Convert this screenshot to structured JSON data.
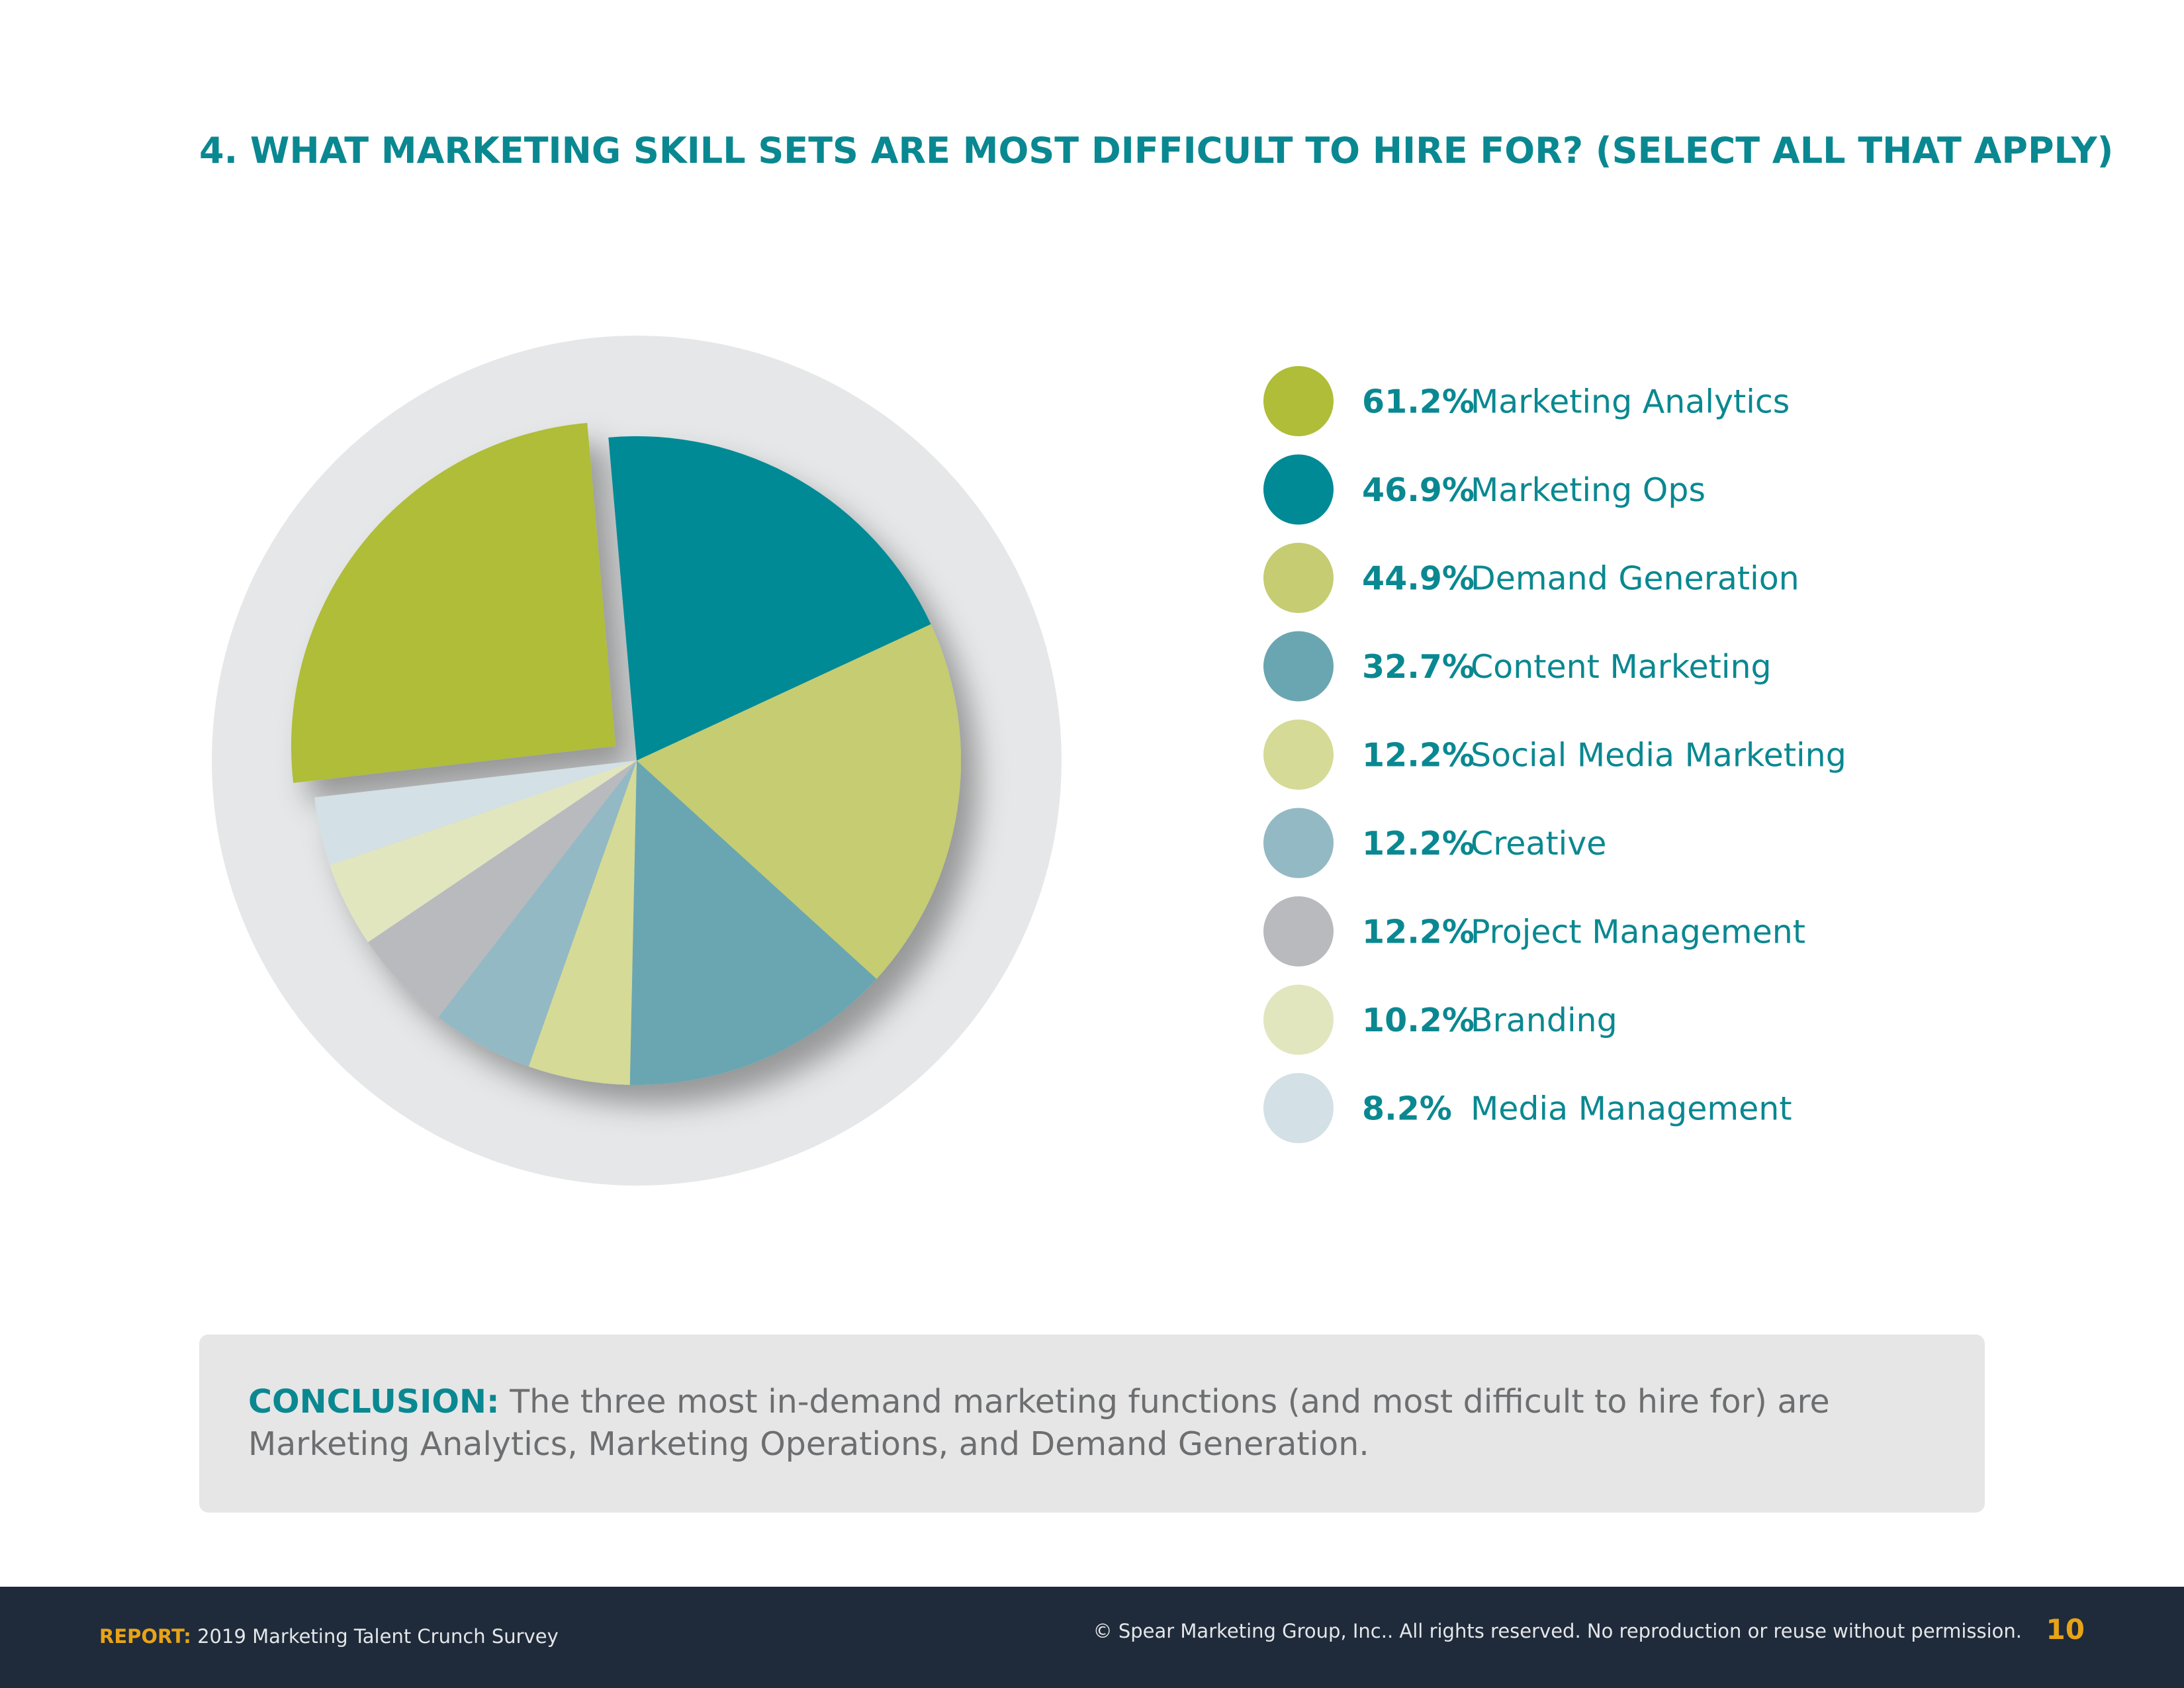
{
  "chart_data": {
    "type": "pie",
    "title": "4. WHAT MARKETING SKILL SETS ARE MOST DIFFICULT TO HIRE FOR? (SELECT ALL THAT APPLY)",
    "categories": [
      "Marketing Analytics",
      "Marketing Ops",
      "Demand Generation",
      "Content Marketing",
      "Social Media Marketing",
      "Creative",
      "Project Management",
      "Branding",
      "Media Management"
    ],
    "values": [
      61.2,
      46.9,
      44.9,
      32.7,
      12.2,
      12.2,
      12.2,
      10.2,
      8.2
    ],
    "value_labels": [
      "61.2%",
      "46.9%",
      "44.9%",
      "32.7%",
      "12.2%",
      "12.2%",
      "12.2%",
      "10.2%",
      "8.2%"
    ],
    "colors": [
      "#afbd38",
      "#008a96",
      "#c5cc72",
      "#6aa6b1",
      "#d5da96",
      "#93b9c4",
      "#b8babe",
      "#e2e6bf",
      "#d3e0e6"
    ]
  },
  "conclusion": {
    "label": "CONCLUSION:",
    "text": "The three most in-demand marketing functions (and most difficult to hire for) are Marketing Analytics, Marketing Operations, and Demand Generation."
  },
  "footer": {
    "report_label": "REPORT:",
    "report_text": "2019 Marketing Talent Crunch Survey",
    "copyright": "© Spear Marketing Group, Inc.. All rights reserved. No reproduction or reuse without permission.",
    "page": "10"
  }
}
